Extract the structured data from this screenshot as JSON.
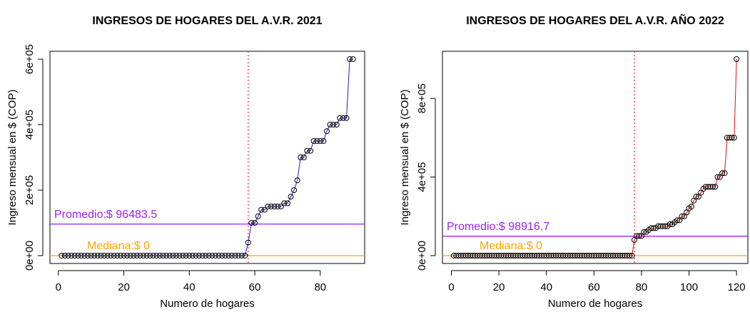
{
  "chart_data": [
    {
      "type": "line",
      "title": "INGRESOS DE HOGARES DEL A.V.R. 2021",
      "xlabel": "Numero de hogares",
      "ylabel": "Ingreso mensual en $ (COP)",
      "x": [
        1,
        2,
        3,
        4,
        5,
        6,
        7,
        8,
        9,
        10,
        11,
        12,
        13,
        14,
        15,
        16,
        17,
        18,
        19,
        20,
        21,
        22,
        23,
        24,
        25,
        26,
        27,
        28,
        29,
        30,
        31,
        32,
        33,
        34,
        35,
        36,
        37,
        38,
        39,
        40,
        41,
        42,
        43,
        44,
        45,
        46,
        47,
        48,
        49,
        50,
        51,
        52,
        53,
        54,
        55,
        56,
        57,
        58,
        59,
        60,
        61,
        62,
        63,
        64,
        65,
        66,
        67,
        68,
        69,
        70,
        71,
        72,
        73,
        74,
        75,
        76,
        77,
        78,
        79,
        80,
        81,
        82,
        83,
        84,
        85,
        86,
        87,
        88,
        89,
        90
      ],
      "series": [
        {
          "color": "#1f1fd0",
          "values": [
            0,
            0,
            0,
            0,
            0,
            0,
            0,
            0,
            0,
            0,
            0,
            0,
            0,
            0,
            0,
            0,
            0,
            0,
            0,
            0,
            0,
            0,
            0,
            0,
            0,
            0,
            0,
            0,
            0,
            0,
            0,
            0,
            0,
            0,
            0,
            0,
            0,
            0,
            0,
            0,
            0,
            0,
            0,
            0,
            0,
            0,
            0,
            0,
            0,
            0,
            0,
            0,
            0,
            0,
            0,
            0,
            0,
            40000,
            100000,
            100000,
            120000,
            140000,
            140000,
            150000,
            150000,
            150000,
            150000,
            150000,
            160000,
            160000,
            180000,
            200000,
            230000,
            300000,
            300000,
            320000,
            320000,
            350000,
            350000,
            350000,
            350000,
            380000,
            400000,
            400000,
            400000,
            420000,
            420000,
            420000,
            600000,
            600000
          ]
        }
      ],
      "xlim": [
        -2.56,
        93.56
      ],
      "ylim": [
        -24000,
        624000
      ],
      "xticks": [
        0,
        20,
        40,
        60,
        80
      ],
      "yticks": [
        {
          "value": 0,
          "label": "0e+00"
        },
        {
          "value": 200000,
          "label": "2e+05"
        },
        {
          "value": 400000,
          "label": "4e+05"
        },
        {
          "value": 600000,
          "label": "6e+05"
        }
      ],
      "vline": {
        "value": 58,
        "color": "#ff0000"
      },
      "hlines": [
        {
          "label": "Promedio:$ 96483.5",
          "value": 96483.5,
          "color": "#a020f0"
        },
        {
          "label": "Mediana:$ 0",
          "value": 0,
          "color": "#ffa500"
        }
      ]
    },
    {
      "type": "line",
      "title": "INGRESOS DE HOGARES DEL A.V.R. AÑO 2022",
      "xlabel": "Numero de hogares",
      "ylabel": "Ingreso mensual en $ (COP)",
      "x": [
        1,
        2,
        3,
        4,
        5,
        6,
        7,
        8,
        9,
        10,
        11,
        12,
        13,
        14,
        15,
        16,
        17,
        18,
        19,
        20,
        21,
        22,
        23,
        24,
        25,
        26,
        27,
        28,
        29,
        30,
        31,
        32,
        33,
        34,
        35,
        36,
        37,
        38,
        39,
        40,
        41,
        42,
        43,
        44,
        45,
        46,
        47,
        48,
        49,
        50,
        51,
        52,
        53,
        54,
        55,
        56,
        57,
        58,
        59,
        60,
        61,
        62,
        63,
        64,
        65,
        66,
        67,
        68,
        69,
        70,
        71,
        72,
        73,
        74,
        75,
        76,
        77,
        78,
        79,
        80,
        81,
        82,
        83,
        84,
        85,
        86,
        87,
        88,
        89,
        90,
        91,
        92,
        93,
        94,
        95,
        96,
        97,
        98,
        99,
        100,
        101,
        102,
        103,
        104,
        105,
        106,
        107,
        108,
        109,
        110,
        111,
        112,
        113,
        114,
        115,
        116,
        117,
        118,
        119,
        120
      ],
      "series": [
        {
          "color": "#e01010",
          "values": [
            0,
            0,
            0,
            0,
            0,
            0,
            0,
            0,
            0,
            0,
            0,
            0,
            0,
            0,
            0,
            0,
            0,
            0,
            0,
            0,
            0,
            0,
            0,
            0,
            0,
            0,
            0,
            0,
            0,
            0,
            0,
            0,
            0,
            0,
            0,
            0,
            0,
            0,
            0,
            0,
            0,
            0,
            0,
            0,
            0,
            0,
            0,
            0,
            0,
            0,
            0,
            0,
            0,
            0,
            0,
            0,
            0,
            0,
            0,
            0,
            0,
            0,
            0,
            0,
            0,
            0,
            0,
            0,
            0,
            0,
            0,
            0,
            0,
            0,
            0,
            0,
            80000,
            100000,
            100000,
            100000,
            120000,
            120000,
            130000,
            140000,
            140000,
            140000,
            150000,
            150000,
            150000,
            150000,
            150000,
            160000,
            160000,
            170000,
            180000,
            180000,
            200000,
            200000,
            220000,
            240000,
            250000,
            280000,
            300000,
            300000,
            320000,
            340000,
            350000,
            350000,
            350000,
            350000,
            350000,
            400000,
            400000,
            420000,
            420000,
            600000,
            600000,
            600000,
            600000,
            1000000
          ]
        }
      ],
      "xlim": [
        -3.76,
        124.76
      ],
      "ylim": [
        -40000,
        1040000
      ],
      "xticks": [
        0,
        20,
        40,
        60,
        80,
        100,
        120
      ],
      "yticks": [
        {
          "value": 0,
          "label": "0e+00"
        },
        {
          "value": 400000,
          "label": "4e+05"
        },
        {
          "value": 800000,
          "label": "8e+05"
        }
      ],
      "vline": {
        "value": 77,
        "color": "#ff0000"
      },
      "hlines": [
        {
          "label": "Promedio:$ 98916.7",
          "value": 98916.7,
          "color": "#a020f0"
        },
        {
          "label": "Mediana:$ 0",
          "value": 0,
          "color": "#ffa500"
        }
      ]
    }
  ]
}
